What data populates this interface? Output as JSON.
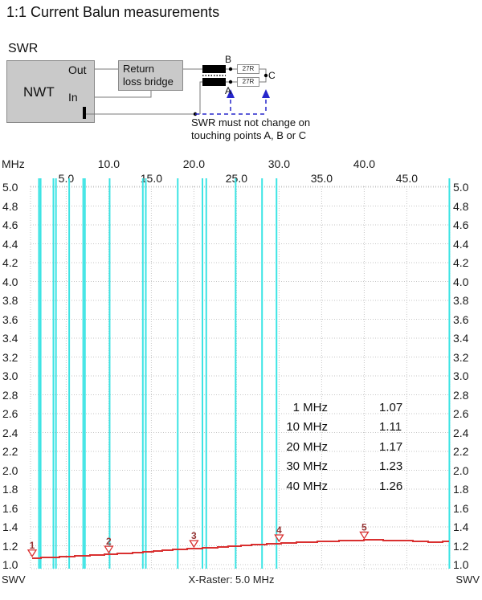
{
  "page": {
    "title": "1:1 Current Balun measurements"
  },
  "schematic": {
    "heading": "SWR",
    "device_label": "NWT",
    "out_label": "Out",
    "in_label": "In",
    "bridge_lines": [
      "Return",
      "loss bridge"
    ],
    "resistor_top": "27R",
    "resistor_bottom": "27R",
    "point_b": "B",
    "point_a": "A",
    "point_c": "C",
    "note_lines": [
      "SWR must not change on",
      "touching points A, B or C"
    ],
    "colors": {
      "box_fill": "#c9c9c9",
      "wire": "#7a7a7a",
      "arrow_blue": "#2626cc"
    }
  },
  "chart_data": {
    "type": "line",
    "title": "",
    "x_unit_label": "MHz",
    "x_range_mhz": [
      1,
      50
    ],
    "x_ticks_mhz": [
      5,
      10,
      15,
      20,
      25,
      30,
      35,
      40,
      45
    ],
    "x_tick_labels": [
      "5.0",
      "10.0",
      "15.0",
      "20.0",
      "25.0",
      "30.0",
      "35.0",
      "40.0",
      "45.0"
    ],
    "y_range_swr": [
      1.0,
      5.0
    ],
    "y_tick_values": [
      5.0,
      4.8,
      4.6,
      4.4,
      4.2,
      4.0,
      3.8,
      3.6,
      3.4,
      3.2,
      3.0,
      2.8,
      2.6,
      2.4,
      2.2,
      2.0,
      1.8,
      1.6,
      1.4,
      1.2,
      1.0
    ],
    "y_tick_labels": [
      "5.0",
      "4.8",
      "4.6",
      "4.4",
      "4.2",
      "4.0",
      "3.8",
      "3.6",
      "3.4",
      "3.2",
      "3.0",
      "2.8",
      "2.6",
      "2.4",
      "2.2",
      "2.0",
      "1.8",
      "1.6",
      "1.4",
      "1.2",
      "1.0"
    ],
    "y_axis_label_left": "SWV",
    "y_axis_label_right": "SWV",
    "footer_label": "X-Raster: 5.0 MHz",
    "grid": "dotted, every 5 MHz vertical and 0.2 SWR horizontal",
    "ham_band_lines_mhz": [
      1.8,
      2.0,
      3.5,
      3.8,
      5.35,
      7.0,
      7.2,
      10.1,
      14.0,
      14.35,
      18.1,
      21.0,
      21.45,
      24.9,
      28.0,
      29.7,
      50.0
    ],
    "series": [
      {
        "name": "SWR trace",
        "x_mhz": [
          1,
          3,
          5,
          7,
          9,
          11,
          13,
          15,
          17,
          20,
          23,
          26,
          29,
          32,
          35,
          38,
          40,
          42,
          44,
          46,
          48,
          50
        ],
        "swr": [
          1.07,
          1.075,
          1.085,
          1.095,
          1.105,
          1.115,
          1.125,
          1.14,
          1.155,
          1.17,
          1.185,
          1.205,
          1.22,
          1.235,
          1.245,
          1.255,
          1.26,
          1.26,
          1.255,
          1.25,
          1.24,
          1.245
        ]
      }
    ],
    "markers": [
      {
        "label": "1",
        "mhz": 1,
        "swr": 1.07
      },
      {
        "label": "2",
        "mhz": 10,
        "swr": 1.11
      },
      {
        "label": "3",
        "mhz": 20,
        "swr": 1.17
      },
      {
        "label": "4",
        "mhz": 30,
        "swr": 1.23
      },
      {
        "label": "5",
        "mhz": 40,
        "swr": 1.26
      }
    ],
    "readings": [
      {
        "freq": "1 MHz",
        "value": "1.07"
      },
      {
        "freq": "10 MHz",
        "value": "1.11"
      },
      {
        "freq": "20 MHz",
        "value": "1.17"
      },
      {
        "freq": "30 MHz",
        "value": "1.23"
      },
      {
        "freq": "40 MHz",
        "value": "1.26"
      }
    ],
    "colors": {
      "trace": "#d93030",
      "marker_text": "#963434",
      "band": "#3ce4e4",
      "grid": "#c6c6c6",
      "text": "#1a1a1a"
    }
  }
}
